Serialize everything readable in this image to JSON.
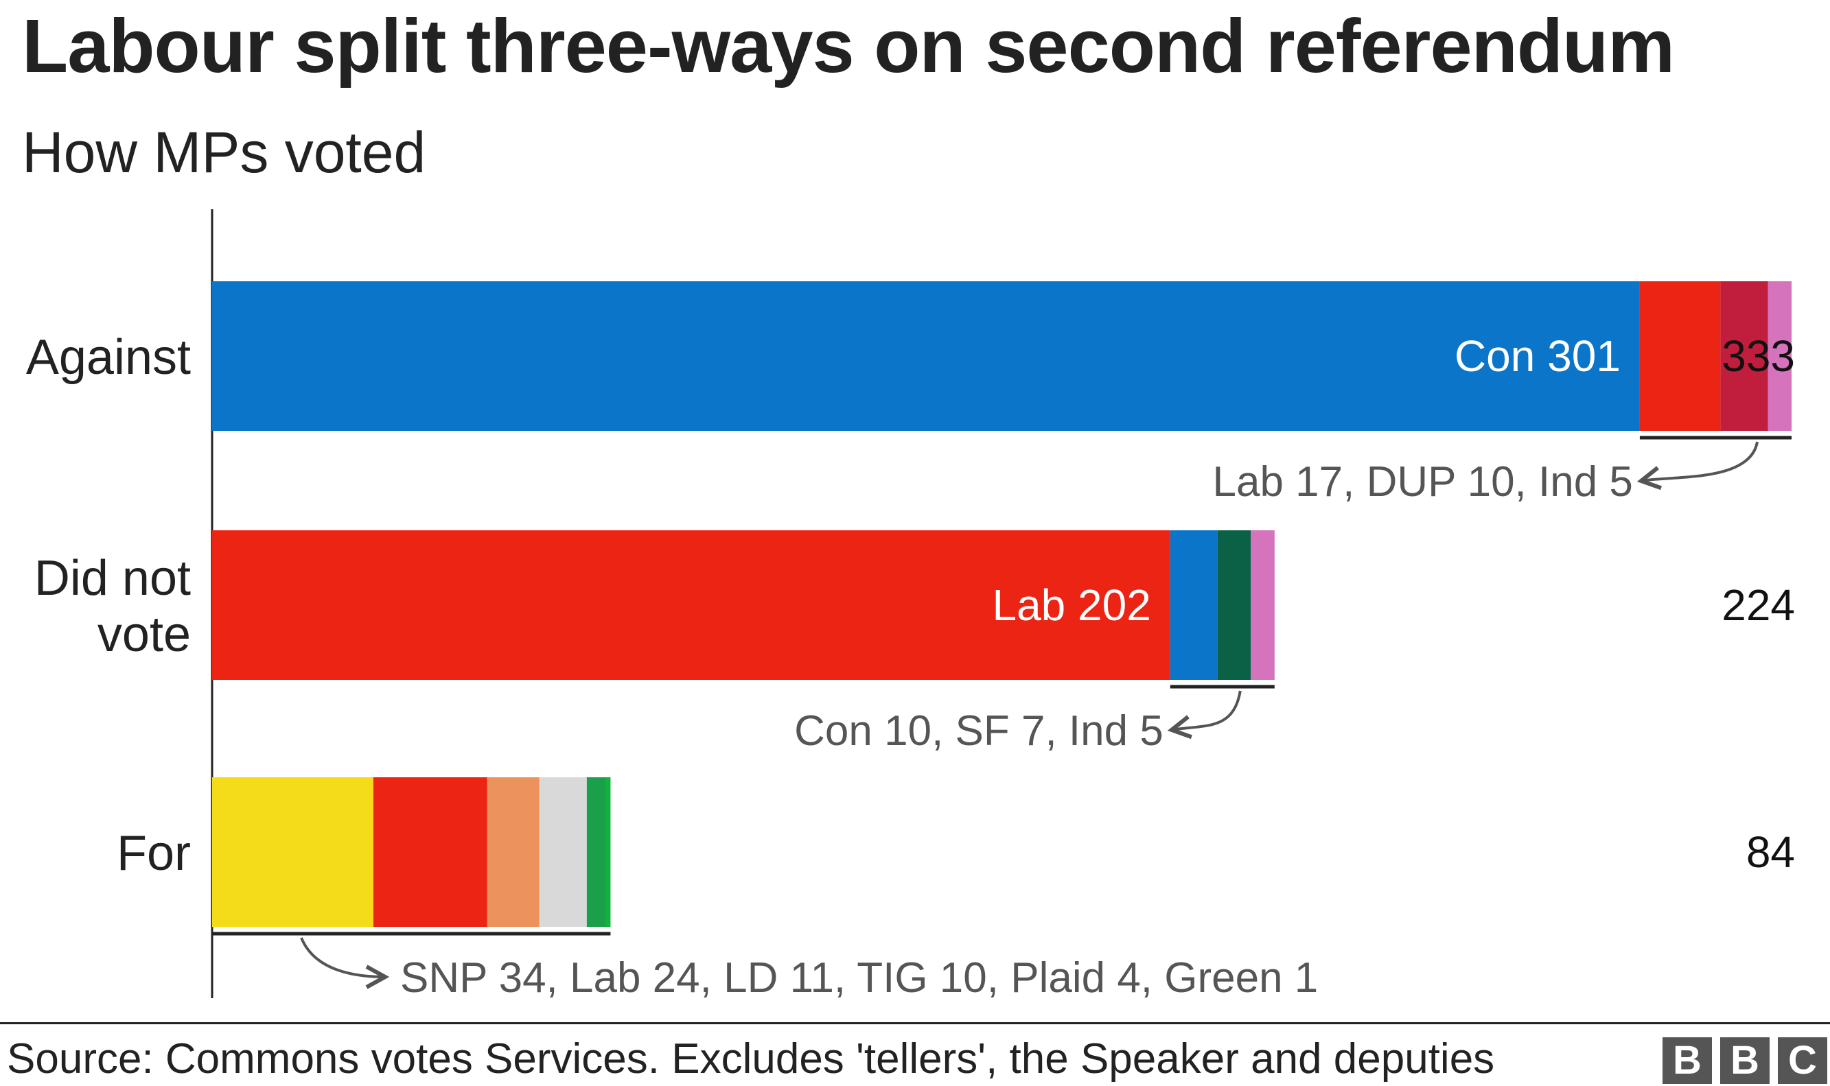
{
  "title": "Labour split three-ways on second referendum",
  "subtitle": "How MPs voted",
  "source": "Source: Commons votes Services. Excludes 'tellers', the Speaker and deputies",
  "logo": [
    "B",
    "B",
    "C"
  ],
  "colors": {
    "con": "#0a75c9",
    "lab": "#ec2414",
    "dup": "#c01e3c",
    "ind": "#d573bd",
    "sf": "#0b6146",
    "snp": "#f5dc1b",
    "ld": "#ec935d",
    "tig": "#d9d9d9",
    "plaid": "#1aa04b",
    "green": "#12b33c",
    "axis": "#222222",
    "annotation": "#555555"
  },
  "chart_data": {
    "type": "bar",
    "orientation": "horizontal",
    "stacked": true,
    "title": "Labour split three-ways on second referendum",
    "subtitle": "How MPs voted",
    "xlim": [
      0,
      340
    ],
    "grid": false,
    "categories": [
      {
        "label_lines": [
          "Against"
        ],
        "total": 333,
        "inline_label": "Con 301",
        "annotation": "Lab 17, DUP 10, Ind 5",
        "segments": [
          {
            "party": "Con",
            "value": 301,
            "color": "#0a75c9"
          },
          {
            "party": "Lab",
            "value": 17,
            "color": "#ec2414"
          },
          {
            "party": "DUP",
            "value": 10,
            "color": "#c01e3c"
          },
          {
            "party": "Ind",
            "value": 5,
            "color": "#d573bd"
          }
        ]
      },
      {
        "label_lines": [
          "Did not",
          "vote"
        ],
        "total": 224,
        "inline_label": "Lab 202",
        "annotation": "Con 10, SF 7, Ind 5",
        "segments": [
          {
            "party": "Lab",
            "value": 202,
            "color": "#ec2414"
          },
          {
            "party": "Con",
            "value": 10,
            "color": "#0a75c9"
          },
          {
            "party": "SF",
            "value": 7,
            "color": "#0b6146"
          },
          {
            "party": "Ind",
            "value": 5,
            "color": "#d573bd"
          }
        ]
      },
      {
        "label_lines": [
          "For"
        ],
        "total": 84,
        "inline_label": "",
        "annotation": "SNP 34, Lab 24, LD 11, TIG 10, Plaid 4, Green 1",
        "segments": [
          {
            "party": "SNP",
            "value": 34,
            "color": "#f5dc1b"
          },
          {
            "party": "Lab",
            "value": 24,
            "color": "#ec2414"
          },
          {
            "party": "LD",
            "value": 11,
            "color": "#ec935d"
          },
          {
            "party": "TIG",
            "value": 10,
            "color": "#d9d9d9"
          },
          {
            "party": "Plaid",
            "value": 4,
            "color": "#1aa04b"
          },
          {
            "party": "Green",
            "value": 1,
            "color": "#12b33c"
          }
        ]
      }
    ]
  }
}
